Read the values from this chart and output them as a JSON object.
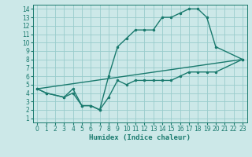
{
  "line1_x": [
    0,
    1,
    3,
    4,
    5,
    6,
    7,
    8,
    9,
    10,
    11,
    12,
    13,
    14,
    15,
    16,
    17,
    18,
    19,
    20,
    23
  ],
  "line1_y": [
    4.5,
    4.0,
    3.5,
    4.5,
    2.5,
    2.5,
    2.0,
    6.0,
    9.5,
    10.5,
    11.5,
    11.5,
    11.5,
    13.0,
    13.0,
    13.5,
    14.0,
    14.0,
    13.0,
    9.5,
    8.0
  ],
  "line2_x": [
    0,
    1,
    3,
    4,
    5,
    6,
    7,
    8,
    9,
    10,
    11,
    12,
    13,
    14,
    15,
    16,
    17,
    18,
    19,
    20,
    23
  ],
  "line2_y": [
    4.5,
    4.0,
    3.5,
    4.0,
    2.5,
    2.5,
    2.0,
    3.5,
    5.5,
    5.0,
    5.5,
    5.5,
    5.5,
    5.5,
    5.5,
    6.0,
    6.5,
    6.5,
    6.5,
    6.5,
    8.0
  ],
  "line3_x": [
    0,
    23
  ],
  "line3_y": [
    4.5,
    8.0
  ],
  "line_color": "#1a7a6e",
  "bg_color": "#cce8e8",
  "grid_color": "#99cccc",
  "xlabel": "Humidex (Indice chaleur)",
  "xlim": [
    -0.5,
    23.5
  ],
  "ylim": [
    0.5,
    14.5
  ],
  "xticks": [
    0,
    1,
    2,
    3,
    4,
    5,
    6,
    7,
    8,
    9,
    10,
    11,
    12,
    13,
    14,
    15,
    16,
    17,
    18,
    19,
    20,
    21,
    22,
    23
  ],
  "yticks": [
    1,
    2,
    3,
    4,
    5,
    6,
    7,
    8,
    9,
    10,
    11,
    12,
    13,
    14
  ],
  "marker": ".",
  "markersize": 3,
  "linewidth": 1.0,
  "label_fontsize": 6.5,
  "tick_fontsize": 5.5
}
